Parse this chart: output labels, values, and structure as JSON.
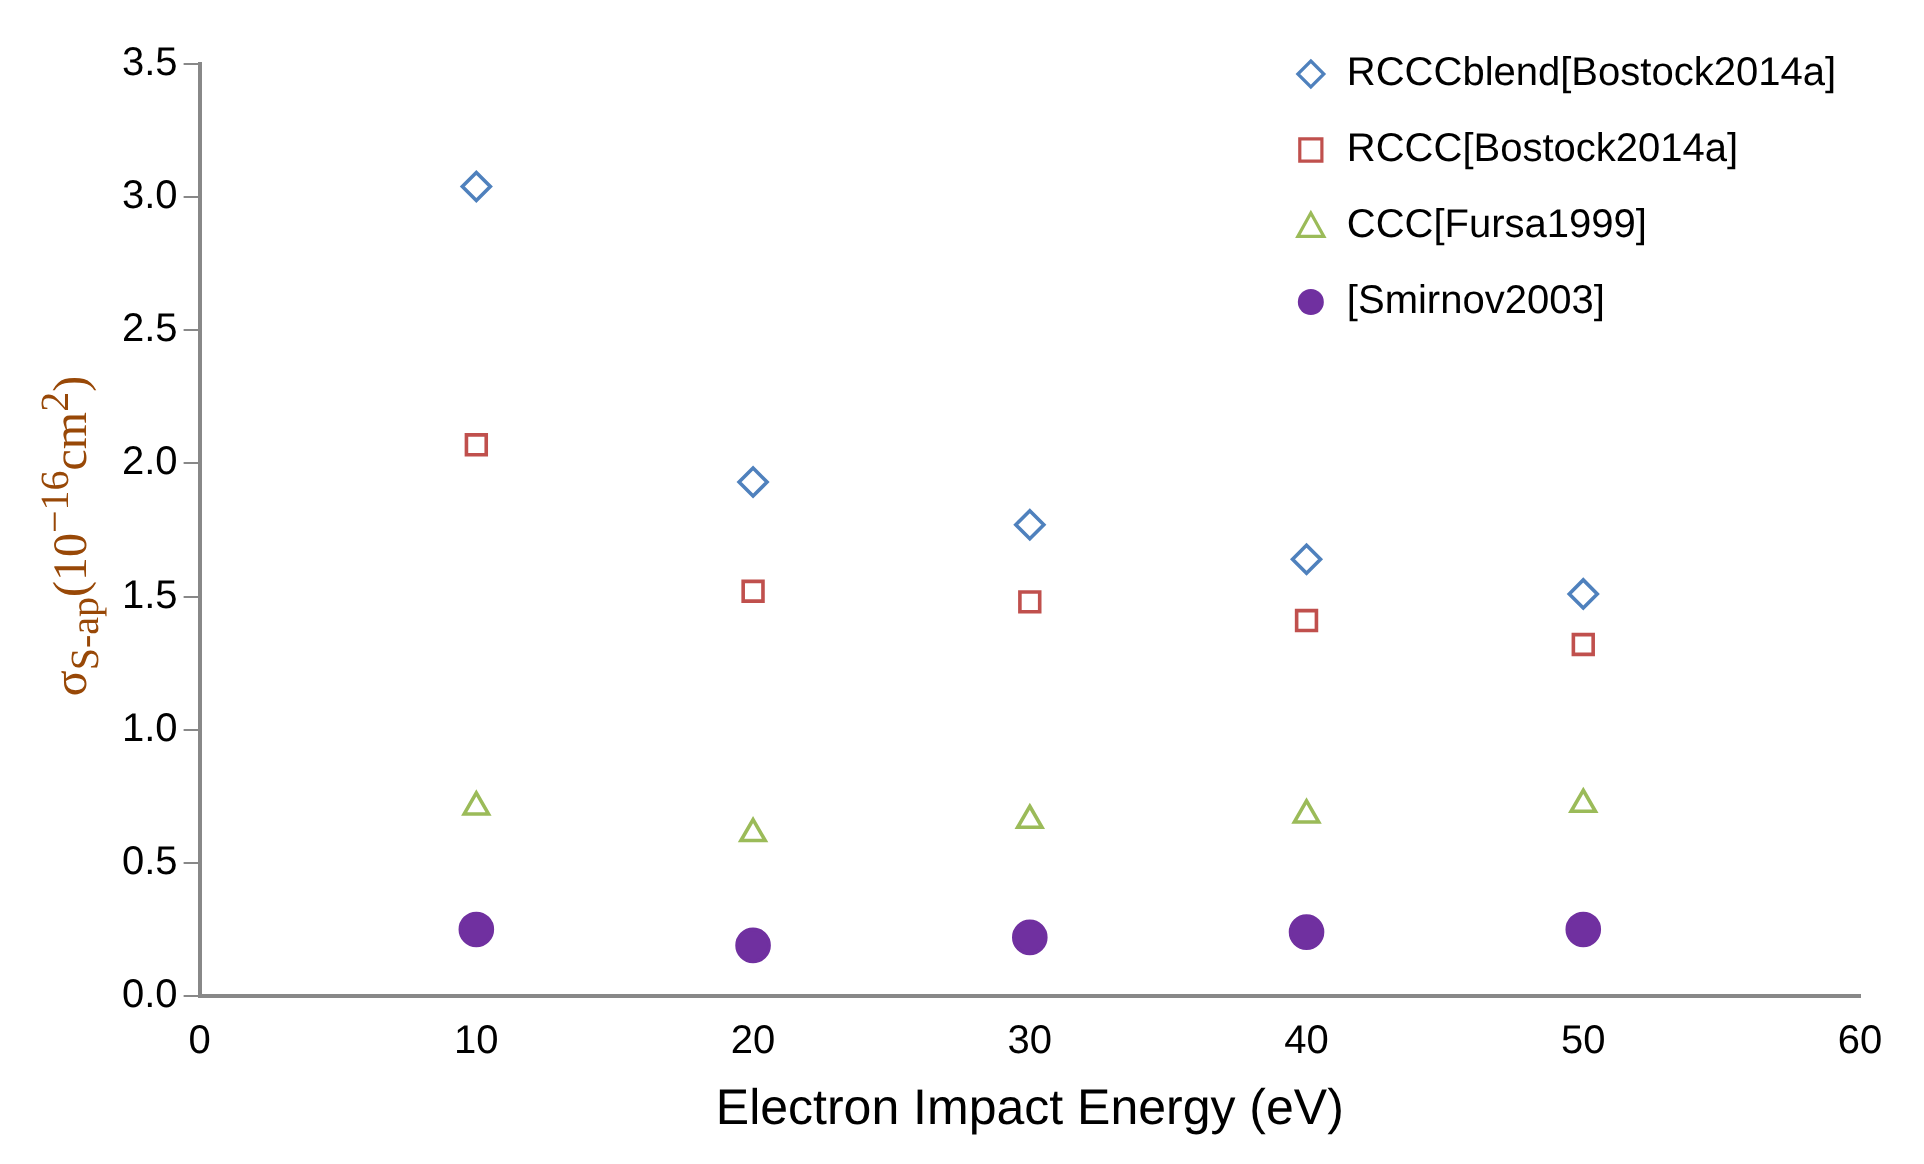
{
  "chart_data": {
    "type": "scatter",
    "xlabel": "Electron Impact Energy (eV)",
    "ylabel": "σ$_{S-ap}$(10$^{−16}$cm$^{2}$)",
    "x": [
      10,
      20,
      30,
      40,
      50
    ],
    "series": [
      {
        "name": "RCCCblend[Bostock2014a]",
        "color": "#4f81bd",
        "marker": "diamond",
        "values": [
          3.04,
          1.93,
          1.77,
          1.64,
          1.51
        ]
      },
      {
        "name": "RCCC[Bostock2014a]",
        "color": "#c0504d",
        "marker": "square",
        "values": [
          2.07,
          1.52,
          1.48,
          1.41,
          1.32
        ]
      },
      {
        "name": "CCC[Fursa1999]",
        "color": "#9bbb59",
        "marker": "triangle",
        "values": [
          0.71,
          0.61,
          0.66,
          0.68,
          0.72
        ]
      },
      {
        "name": "[Smirnov2003]",
        "color": "#7030a0",
        "marker": "circle",
        "values": [
          0.25,
          0.19,
          0.22,
          0.24,
          0.25
        ]
      }
    ],
    "xlim": [
      0,
      60
    ],
    "xticks": [
      0,
      10,
      20,
      30,
      40,
      50,
      60
    ],
    "ylim": [
      0,
      3.5
    ],
    "yticks": [
      {
        "value": 0,
        "label": "0.0"
      },
      0.5,
      {
        "value": 1,
        "label": "1.0"
      },
      1.5,
      {
        "value": 2,
        "label": "2.0"
      },
      2.5,
      {
        "value": 3,
        "label": "3.0"
      },
      3.5
    ],
    "grid": false,
    "legend": "top right"
  }
}
